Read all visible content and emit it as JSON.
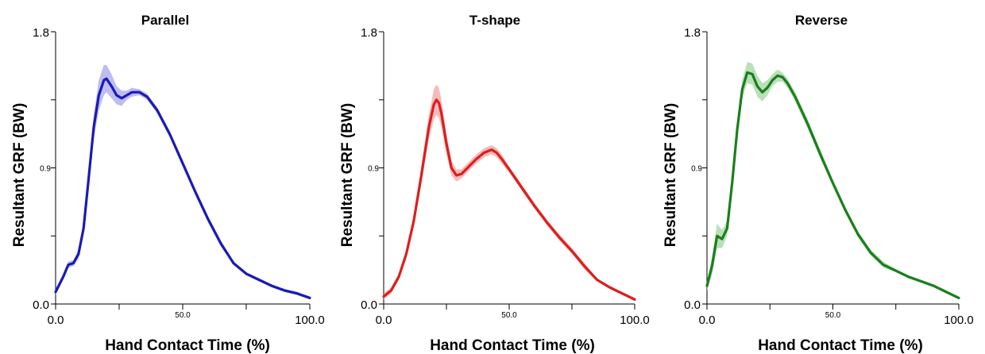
{
  "chart_data": [
    {
      "type": "line",
      "title": "Parallel",
      "xlabel": "Hand Contact Time (%)",
      "ylabel": "Resultant GRF (BW)",
      "xlim": [
        0,
        100
      ],
      "ylim": [
        0,
        1.8
      ],
      "x_ticks": [
        0,
        25,
        50,
        75,
        100
      ],
      "x_tick_labels": [
        "0.0",
        "",
        "50.0",
        "",
        "100.0"
      ],
      "y_ticks": [
        0,
        0.45,
        0.9,
        1.35,
        1.8
      ],
      "y_tick_labels": [
        "0.0",
        "",
        "0.9",
        "",
        "1.8"
      ],
      "color": "#1a1ab4",
      "band_color": "#a7a7f0",
      "series": [
        {
          "x": [
            0,
            3,
            5,
            7,
            9,
            11,
            13,
            15,
            17,
            19,
            20,
            22,
            24,
            26,
            28,
            30,
            33,
            36,
            40,
            45,
            50,
            55,
            60,
            65,
            70,
            75,
            80,
            85,
            90,
            95,
            100
          ],
          "y": [
            0.08,
            0.18,
            0.26,
            0.27,
            0.33,
            0.5,
            0.83,
            1.17,
            1.38,
            1.48,
            1.49,
            1.44,
            1.38,
            1.36,
            1.38,
            1.4,
            1.4,
            1.37,
            1.28,
            1.12,
            0.93,
            0.74,
            0.56,
            0.4,
            0.27,
            0.2,
            0.16,
            0.12,
            0.09,
            0.07,
            0.04
          ],
          "band": [
            0.02,
            0.02,
            0.02,
            0.02,
            0.03,
            0.04,
            0.06,
            0.08,
            0.1,
            0.1,
            0.09,
            0.08,
            0.06,
            0.05,
            0.03,
            0.03,
            0.02,
            0.02,
            0.02,
            0.02,
            0.02,
            0.02,
            0.02,
            0.02,
            0.01,
            0.01,
            0.01,
            0.01,
            0.01,
            0.01,
            0.01
          ]
        }
      ]
    },
    {
      "type": "line",
      "title": "T-shape",
      "xlabel": "Hand Contact Time (%)",
      "ylabel": "Resultant GRF (BW)",
      "xlim": [
        0,
        100
      ],
      "ylim": [
        0,
        1.8
      ],
      "x_ticks": [
        0,
        25,
        50,
        75,
        100
      ],
      "x_tick_labels": [
        "0.0",
        "",
        "50.0",
        "",
        "100.0"
      ],
      "y_ticks": [
        0,
        0.45,
        0.9,
        1.35,
        1.8
      ],
      "y_tick_labels": [
        "0.0",
        "",
        "0.9",
        "",
        "1.8"
      ],
      "color": "#dc1e1e",
      "band_color": "#f3a3a3",
      "series": [
        {
          "x": [
            0,
            3,
            6,
            9,
            12,
            15,
            18,
            20,
            21,
            22,
            23,
            25,
            27,
            29,
            31,
            34,
            37,
            40,
            43,
            45,
            47,
            50,
            55,
            60,
            65,
            70,
            75,
            80,
            85,
            90,
            95,
            100
          ],
          "y": [
            0.05,
            0.09,
            0.18,
            0.33,
            0.55,
            0.85,
            1.17,
            1.32,
            1.35,
            1.33,
            1.26,
            1.06,
            0.9,
            0.85,
            0.86,
            0.91,
            0.96,
            1.0,
            1.02,
            1.0,
            0.96,
            0.89,
            0.77,
            0.65,
            0.54,
            0.44,
            0.35,
            0.25,
            0.16,
            0.11,
            0.07,
            0.03
          ],
          "band": [
            0.02,
            0.02,
            0.02,
            0.03,
            0.04,
            0.06,
            0.08,
            0.1,
            0.1,
            0.1,
            0.09,
            0.07,
            0.05,
            0.04,
            0.03,
            0.03,
            0.03,
            0.03,
            0.03,
            0.03,
            0.03,
            0.02,
            0.02,
            0.02,
            0.02,
            0.02,
            0.02,
            0.02,
            0.01,
            0.01,
            0.01,
            0.01
          ]
        }
      ]
    },
    {
      "type": "line",
      "title": "Reverse",
      "xlabel": "Hand Contact Time (%)",
      "ylabel": "Resultant GRF (BW)",
      "xlim": [
        0,
        100
      ],
      "ylim": [
        0,
        1.8
      ],
      "x_ticks": [
        0,
        25,
        50,
        75,
        100
      ],
      "x_tick_labels": [
        "0.0",
        "",
        "50.0",
        "",
        "100.0"
      ],
      "y_ticks": [
        0,
        0.45,
        0.9,
        1.35,
        1.8
      ],
      "y_tick_labels": [
        "0.0",
        "",
        "0.9",
        "",
        "1.8"
      ],
      "color": "#1b7f1b",
      "band_color": "#a3d6a3",
      "series": [
        {
          "x": [
            0,
            2,
            4,
            6,
            8,
            10,
            12,
            14,
            16,
            18,
            20,
            22,
            24,
            26,
            28,
            30,
            32,
            35,
            40,
            45,
            50,
            55,
            60,
            65,
            70,
            75,
            80,
            85,
            90,
            95,
            100
          ],
          "y": [
            0.12,
            0.25,
            0.45,
            0.43,
            0.5,
            0.8,
            1.15,
            1.42,
            1.53,
            1.52,
            1.44,
            1.4,
            1.43,
            1.48,
            1.51,
            1.5,
            1.46,
            1.37,
            1.19,
            0.99,
            0.8,
            0.62,
            0.46,
            0.34,
            0.26,
            0.22,
            0.18,
            0.15,
            0.12,
            0.08,
            0.04
          ],
          "band": [
            0.03,
            0.06,
            0.08,
            0.06,
            0.05,
            0.05,
            0.06,
            0.06,
            0.07,
            0.07,
            0.07,
            0.06,
            0.05,
            0.04,
            0.04,
            0.03,
            0.03,
            0.03,
            0.03,
            0.03,
            0.02,
            0.02,
            0.02,
            0.02,
            0.02,
            0.01,
            0.01,
            0.01,
            0.01,
            0.01,
            0.01
          ]
        }
      ]
    }
  ]
}
